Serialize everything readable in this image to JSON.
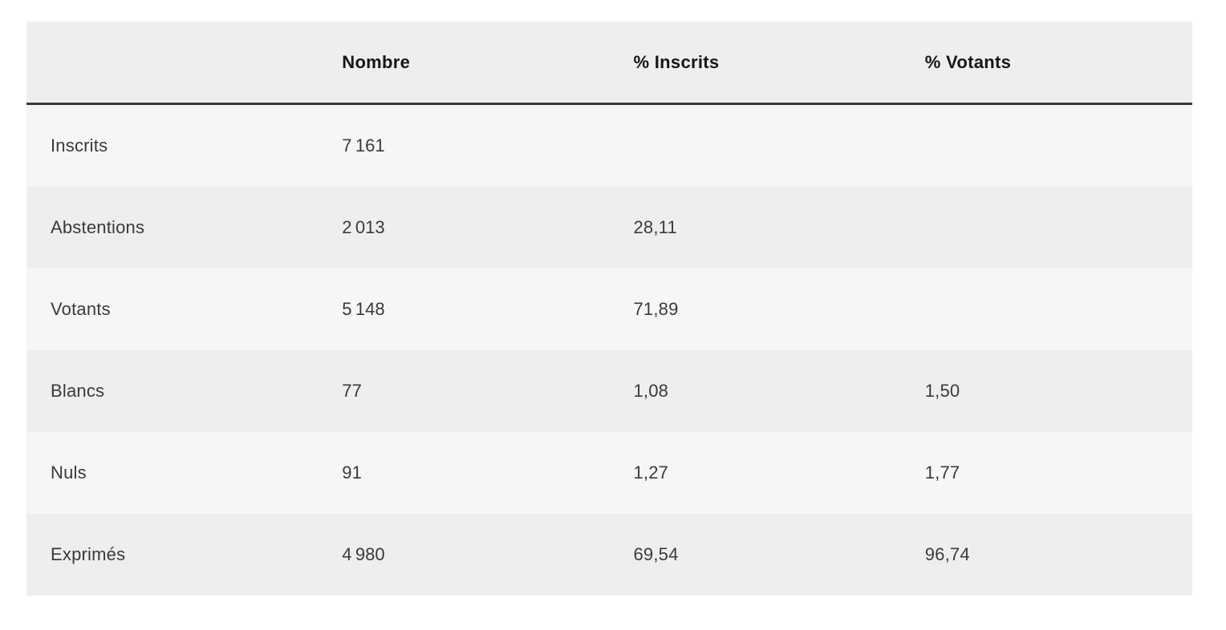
{
  "table": {
    "columns": [
      {
        "label": ""
      },
      {
        "label": "Nombre"
      },
      {
        "label": "% Inscrits"
      },
      {
        "label": "% Votants"
      }
    ],
    "rows": [
      {
        "label": "Inscrits",
        "nombre": "7 161",
        "pct_inscrits": "",
        "pct_votants": ""
      },
      {
        "label": "Abstentions",
        "nombre": "2 013",
        "pct_inscrits": "28,11",
        "pct_votants": ""
      },
      {
        "label": "Votants",
        "nombre": "5 148",
        "pct_inscrits": "71,89",
        "pct_votants": ""
      },
      {
        "label": "Blancs",
        "nombre": "77",
        "pct_inscrits": "1,08",
        "pct_votants": "1,50"
      },
      {
        "label": "Nuls",
        "nombre": "91",
        "pct_inscrits": "1,27",
        "pct_votants": "1,77"
      },
      {
        "label": "Exprimés",
        "nombre": "4 980",
        "pct_inscrits": "69,54",
        "pct_votants": "96,74"
      }
    ]
  },
  "colors": {
    "page_bg": "#ffffff",
    "header_bg": "#eeeeee",
    "row_light_bg": "#f6f6f6",
    "row_dark_bg": "#eeeeee",
    "header_rule": "#3a3a3a",
    "header_text": "#161616",
    "body_text": "#3a3a3a"
  }
}
